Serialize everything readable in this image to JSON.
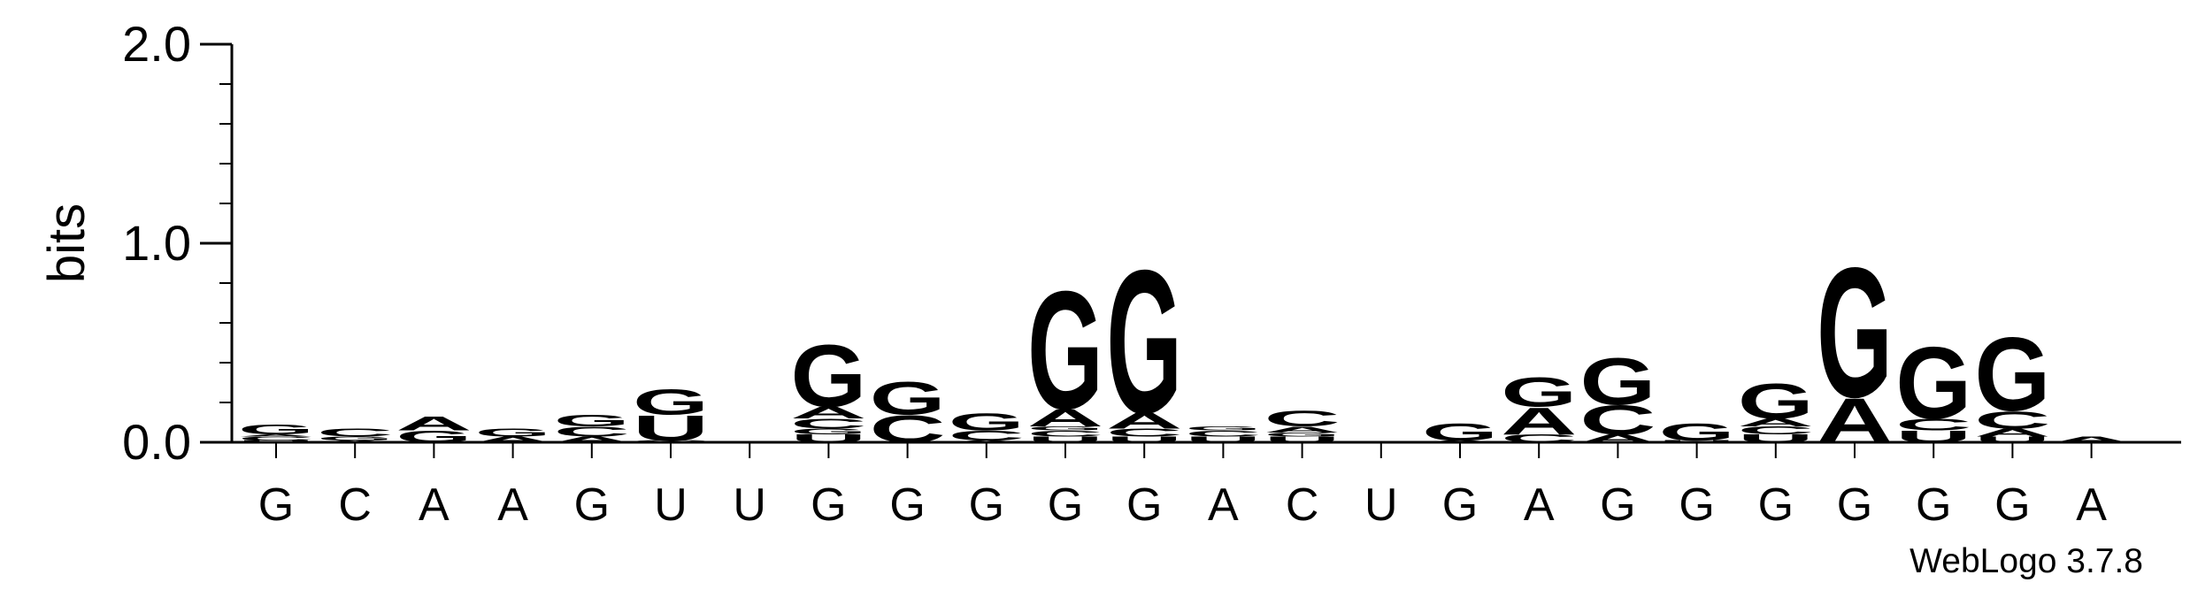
{
  "chart_data": {
    "type": "sequence-logo",
    "title": "",
    "ylabel": "bits",
    "ylim": [
      0,
      2
    ],
    "yticks": [
      {
        "value": 2.0,
        "label": "2.0"
      },
      {
        "value": 1.0,
        "label": "1.0"
      },
      {
        "value": 0.0,
        "label": "0.0"
      }
    ],
    "positions": [
      "G",
      "C",
      "A",
      "A",
      "G",
      "U",
      "U",
      "G",
      "G",
      "G",
      "G",
      "G",
      "A",
      "C",
      "U",
      "G",
      "A",
      "G",
      "G",
      "G",
      "G",
      "G",
      "G",
      "A"
    ],
    "stacks": [
      [
        {
          "l": "U",
          "v": 0.01
        },
        {
          "l": "C",
          "v": 0.02
        },
        {
          "l": "A",
          "v": 0.01
        },
        {
          "l": "G",
          "v": 0.05
        }
      ],
      [
        {
          "l": "A",
          "v": 0.01
        },
        {
          "l": "G",
          "v": 0.02
        },
        {
          "l": "C",
          "v": 0.04
        }
      ],
      [
        {
          "l": "G",
          "v": 0.06
        },
        {
          "l": "A",
          "v": 0.07
        }
      ],
      [
        {
          "l": "A",
          "v": 0.03
        },
        {
          "l": "G",
          "v": 0.04
        }
      ],
      [
        {
          "l": "A",
          "v": 0.03
        },
        {
          "l": "C",
          "v": 0.05
        },
        {
          "l": "G",
          "v": 0.06
        }
      ],
      [
        {
          "l": "C",
          "v": 0.01
        },
        {
          "l": "U",
          "v": 0.13
        },
        {
          "l": "G",
          "v": 0.13
        }
      ],
      [],
      [
        {
          "l": "U",
          "v": 0.04
        },
        {
          "l": "G",
          "v": 0.03
        },
        {
          "l": "C",
          "v": 0.05
        },
        {
          "l": "A",
          "v": 0.06
        },
        {
          "l": "G",
          "v": 0.32
        }
      ],
      [
        {
          "l": "C",
          "v": 0.14
        },
        {
          "l": "G",
          "v": 0.17
        }
      ],
      [
        {
          "l": "A",
          "v": 0.01
        },
        {
          "l": "C",
          "v": 0.05
        },
        {
          "l": "G",
          "v": 0.09
        }
      ],
      [
        {
          "l": "U",
          "v": 0.03
        },
        {
          "l": "C",
          "v": 0.03
        },
        {
          "l": "G",
          "v": 0.02
        },
        {
          "l": "A",
          "v": 0.09
        },
        {
          "l": "G",
          "v": 0.61
        }
      ],
      [
        {
          "l": "U",
          "v": 0.03
        },
        {
          "l": "C",
          "v": 0.04
        },
        {
          "l": "A",
          "v": 0.08
        },
        {
          "l": "G",
          "v": 0.74
        }
      ],
      [
        {
          "l": "U",
          "v": 0.03
        },
        {
          "l": "C",
          "v": 0.03
        },
        {
          "l": "G",
          "v": 0.02
        }
      ],
      [
        {
          "l": "U",
          "v": 0.03
        },
        {
          "l": "G",
          "v": 0.02
        },
        {
          "l": "A",
          "v": 0.03
        },
        {
          "l": "C",
          "v": 0.08
        }
      ],
      [],
      [
        {
          "l": "A",
          "v": 0.01
        },
        {
          "l": "G",
          "v": 0.09
        }
      ],
      [
        {
          "l": "C",
          "v": 0.04
        },
        {
          "l": "A",
          "v": 0.14
        },
        {
          "l": "G",
          "v": 0.15
        }
      ],
      [
        {
          "l": "A",
          "v": 0.04
        },
        {
          "l": "C",
          "v": 0.15
        },
        {
          "l": "G",
          "v": 0.24
        }
      ],
      [
        {
          "l": "U",
          "v": 0.01
        },
        {
          "l": "G",
          "v": 0.09
        }
      ],
      [
        {
          "l": "U",
          "v": 0.04
        },
        {
          "l": "C",
          "v": 0.04
        },
        {
          "l": "A",
          "v": 0.04
        },
        {
          "l": "G",
          "v": 0.18
        }
      ],
      [
        {
          "l": "A",
          "v": 0.23
        },
        {
          "l": "G",
          "v": 0.67
        }
      ],
      [
        {
          "l": "U",
          "v": 0.06
        },
        {
          "l": "C",
          "v": 0.06
        },
        {
          "l": "G",
          "v": 0.37
        }
      ],
      [
        {
          "l": "U",
          "v": 0.03
        },
        {
          "l": "A",
          "v": 0.04
        },
        {
          "l": "C",
          "v": 0.09
        },
        {
          "l": "G",
          "v": 0.38
        }
      ],
      [
        {
          "l": "A",
          "v": 0.03
        }
      ]
    ],
    "colors": {
      "G": "#0000ff",
      "C": "#0000ff",
      "A": "#ff8c00",
      "U": "#ff8c00"
    },
    "credit": "WebLogo 3.7.8"
  }
}
